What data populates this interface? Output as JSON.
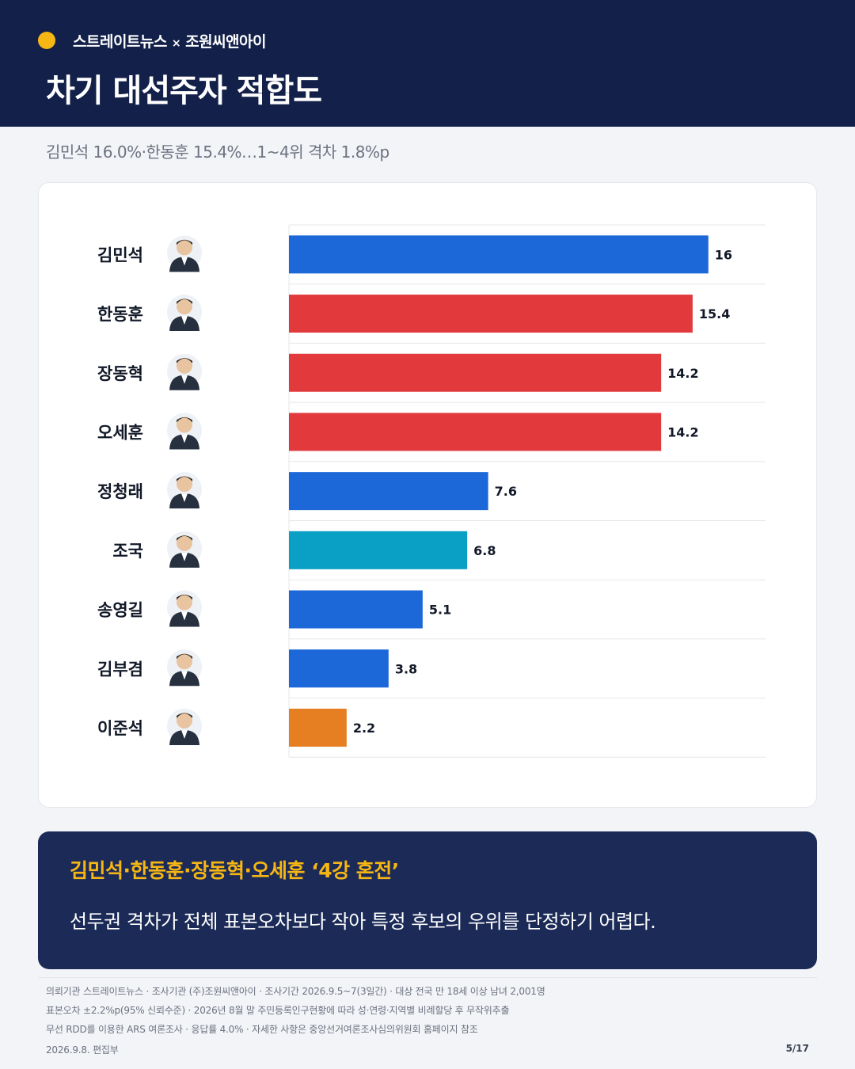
{
  "header": {
    "brand_left": "스트레이트뉴스",
    "brand_sep": "×",
    "brand_right": "조원씨앤아이",
    "title": "차기 대선주자 적합도",
    "accent_color": "#f6b614",
    "background_color": "#13214a"
  },
  "subtitle": "김민석 16.0%·한동훈 15.4%…1~4위 격차 1.8%p",
  "chart_data": {
    "type": "bar",
    "orientation": "horizontal",
    "categories": [
      "김민석",
      "한동훈",
      "장동혁",
      "오세훈",
      "정청래",
      "조국",
      "송영길",
      "김부겸",
      "이준석"
    ],
    "values": [
      16,
      15.4,
      14.2,
      14.2,
      7.6,
      6.8,
      5.1,
      3.8,
      2.2
    ],
    "value_labels": [
      "16",
      "15.4",
      "14.2",
      "14.2",
      "7.6",
      "6.8",
      "5.1",
      "3.8",
      "2.2"
    ],
    "colors": [
      "#1d68d8",
      "#e23a3c",
      "#e23a3c",
      "#e23a3c",
      "#1d68d8",
      "#0aa0c6",
      "#1d68d8",
      "#1d68d8",
      "#e67e22"
    ],
    "xlim": [
      0,
      18
    ],
    "grid": true,
    "photos": [
      "person-photo",
      "person-photo",
      "person-photo",
      "person-photo",
      "person-photo",
      "person-photo",
      "person-photo",
      "person-photo",
      "person-photo"
    ]
  },
  "callout": {
    "title": "김민석·한동훈·장동혁·오세훈 ‘4강 혼전’",
    "text": "선두권 격차가 전체 표본오차보다 작아 특정 후보의 우위를 단정하기 어렵다."
  },
  "footer": {
    "line1": "의뢰기관 스트레이트뉴스 · 조사기관 (주)조원씨앤아이 · 조사기간 2026.9.5~7(3일간) · 대상 전국 만 18세 이상 남녀 2,001명",
    "line2": "표본오차 ±2.2%p(95% 신뢰수준) · 2026년 8월 말 주민등록인구현황에 따라 성·연령·지역별 비례할당 후 무작위추출",
    "line3": "무선 RDD를 이용한 ARS 여론조사 · 응답률 4.0% · 자세한 사항은 중앙선거여론조사심의위원회 홈페이지 참조",
    "date": "2026.9.8. 편집부",
    "page": "5/17"
  }
}
